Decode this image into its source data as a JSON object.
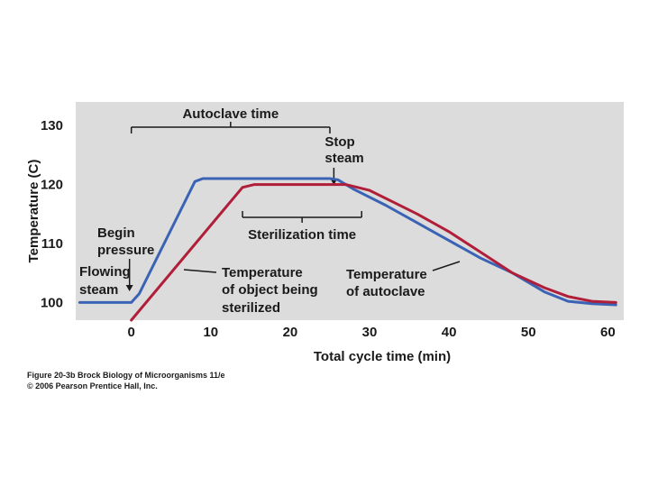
{
  "chart_data": {
    "type": "line",
    "xlabel": "Total cycle time (min)",
    "ylabel": "Temperature (C)",
    "xlim": [
      -7,
      62
    ],
    "ylim": [
      97,
      134
    ],
    "x_ticks": [
      0,
      10,
      20,
      30,
      40,
      50,
      60
    ],
    "y_ticks": [
      100,
      110,
      120,
      130
    ],
    "grid": false,
    "background": "#dcdcdc",
    "series": [
      {
        "name": "Temperature of autoclave",
        "color": "#3b63b5",
        "points": [
          [
            -6.5,
            100
          ],
          [
            0,
            100
          ],
          [
            1,
            101.5
          ],
          [
            8,
            120.5
          ],
          [
            9,
            121
          ],
          [
            25,
            121
          ],
          [
            26,
            120.8
          ],
          [
            28,
            119.2
          ],
          [
            32,
            116.5
          ],
          [
            36,
            113.5
          ],
          [
            40,
            110.5
          ],
          [
            44,
            107.5
          ],
          [
            48,
            105
          ],
          [
            52,
            101.8
          ],
          [
            55,
            100.2
          ],
          [
            58,
            99.8
          ],
          [
            61,
            99.6
          ]
        ]
      },
      {
        "name": "Temperature of object being sterilized",
        "color": "#b01e3a",
        "points": [
          [
            0,
            97
          ],
          [
            14,
            119.5
          ],
          [
            15.5,
            120
          ],
          [
            27,
            120
          ],
          [
            30,
            119
          ],
          [
            33,
            117
          ],
          [
            36,
            115
          ],
          [
            40,
            112
          ],
          [
            44,
            108.5
          ],
          [
            48,
            105
          ],
          [
            52,
            102.5
          ],
          [
            55,
            101
          ],
          [
            58,
            100.2
          ],
          [
            61,
            100
          ]
        ]
      }
    ],
    "annotations": {
      "autoclave_time": "Autoclave time",
      "autoclave_time_range": [
        0,
        25
      ],
      "stop_steam_line1": "Stop",
      "stop_steam_line2": "steam",
      "stop_steam_x": 25.5,
      "sterilization_time": "Sterilization time",
      "sterilization_time_range": [
        14,
        29
      ],
      "begin_pressure_line1": "Begin",
      "begin_pressure_line2": "pressure",
      "flowing_steam_line1": "Flowing",
      "flowing_steam_line2": "steam",
      "object_label_line1": "Temperature",
      "object_label_line2": "of object being",
      "object_label_line3": "sterilized",
      "autoclave_label_line1": "Temperature",
      "autoclave_label_line2": "of autoclave"
    }
  },
  "caption": {
    "line1": "Figure 20-3b  Brock Biology of Microorganisms 11/e",
    "line2": "© 2006 Pearson Prentice Hall, Inc."
  }
}
